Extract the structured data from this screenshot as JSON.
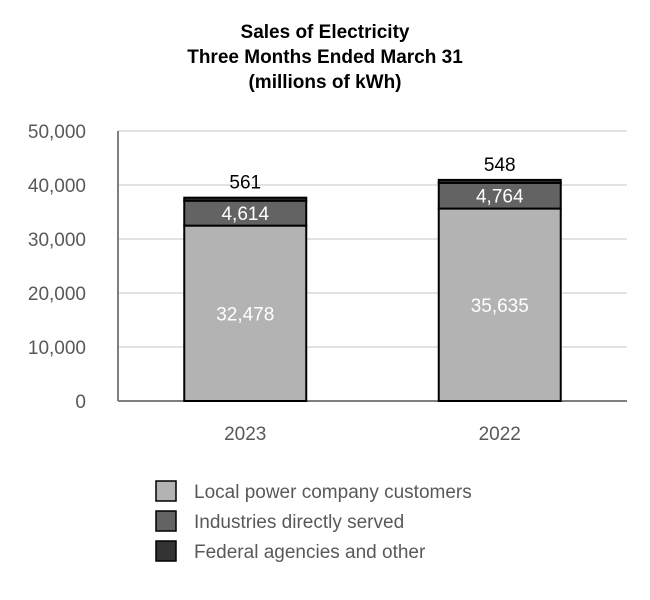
{
  "chart_data": {
    "type": "bar",
    "stacked": true,
    "title_lines": [
      "Sales of Electricity",
      "Three Months Ended March 31",
      "(millions of kWh)"
    ],
    "categories": [
      "2023",
      "2022"
    ],
    "series": [
      {
        "name": "Local power company customers",
        "values": [
          32478,
          35635
        ],
        "labels": [
          "32,478",
          "35,635"
        ],
        "color": "#b3b3b3"
      },
      {
        "name": "Industries directly served",
        "values": [
          4614,
          4764
        ],
        "labels": [
          "4,614",
          "4,764"
        ],
        "color": "#636363"
      },
      {
        "name": "Federal agencies and other",
        "values": [
          561,
          548
        ],
        "labels": [
          "561",
          "548"
        ],
        "color": "#333333"
      }
    ],
    "yticks": [
      0,
      10000,
      20000,
      30000,
      40000,
      50000
    ],
    "ytick_labels": [
      "0",
      "10,000",
      "20,000",
      "30,000",
      "40,000",
      "50,000"
    ],
    "ylim": [
      0,
      50000
    ],
    "grid": true,
    "legend_position": "bottom"
  }
}
